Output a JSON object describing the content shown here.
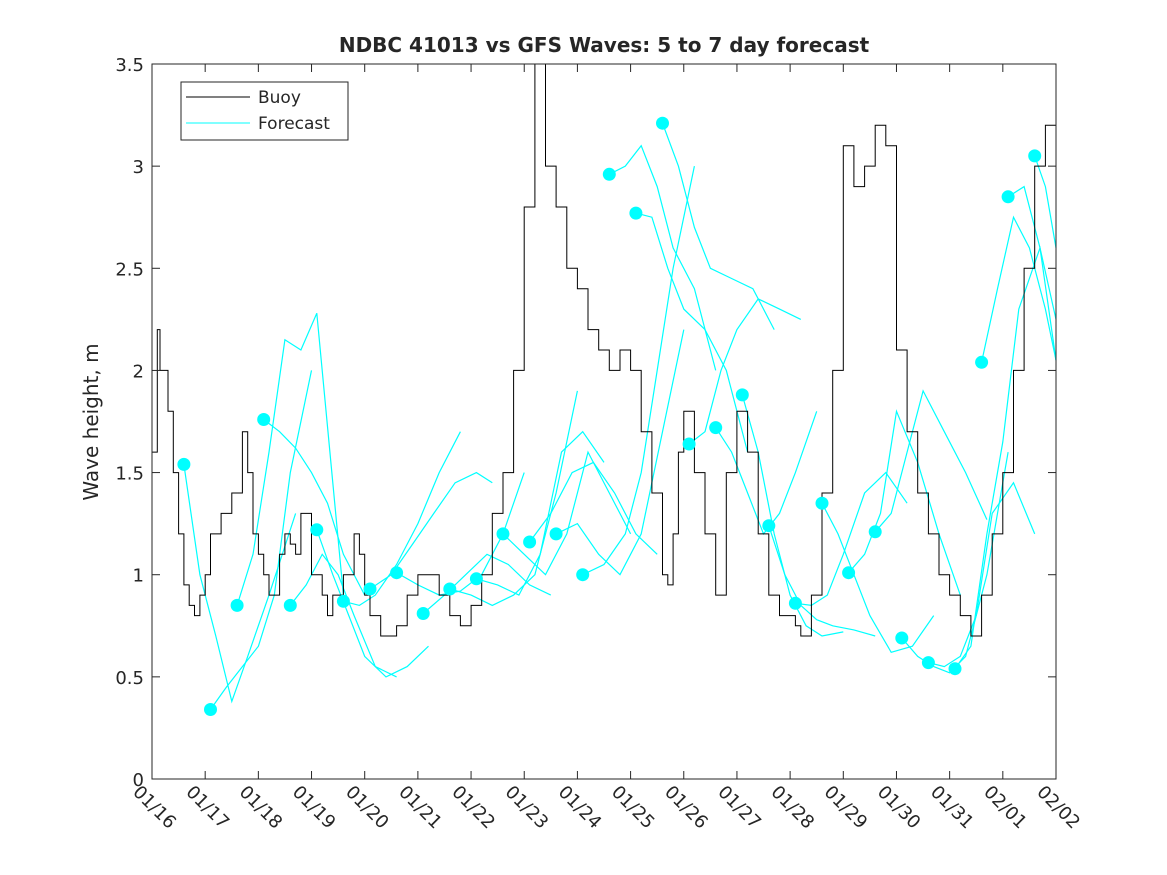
{
  "chart_data": {
    "type": "line",
    "title": "NDBC 41013 vs GFS Waves: 5 to 7 day forecast",
    "xlabel": "",
    "ylabel": "Wave height, m",
    "xlim": [
      0,
      17
    ],
    "ylim": [
      0,
      3.5
    ],
    "x_tick_labels": [
      "01/16",
      "01/17",
      "01/18",
      "01/19",
      "01/20",
      "01/21",
      "01/22",
      "01/23",
      "01/24",
      "01/25",
      "01/26",
      "01/27",
      "01/28",
      "01/29",
      "01/30",
      "01/31",
      "02/01",
      "02/02"
    ],
    "y_ticks": [
      0,
      0.5,
      1,
      1.5,
      2,
      2.5,
      3,
      3.5
    ],
    "y_tick_labels": [
      "0",
      "0.5",
      "1",
      "1.5",
      "2",
      "2.5",
      "3",
      "3.5"
    ],
    "legend": {
      "position": "top-left",
      "entries": [
        {
          "label": "Buoy",
          "color": "#000000"
        },
        {
          "label": "Forecast",
          "color": "#00ffff"
        }
      ]
    },
    "colors": {
      "buoy": "#000000",
      "forecast": "#00ffff"
    },
    "buoy": {
      "name": "Buoy",
      "x": [
        0,
        0.1,
        0.15,
        0.2,
        0.3,
        0.4,
        0.5,
        0.6,
        0.7,
        0.8,
        0.9,
        1.0,
        1.1,
        1.3,
        1.5,
        1.7,
        1.8,
        1.9,
        2.0,
        2.1,
        2.2,
        2.4,
        2.5,
        2.6,
        2.7,
        2.8,
        3.0,
        3.2,
        3.3,
        3.4,
        3.6,
        3.8,
        3.9,
        4.0,
        4.1,
        4.3,
        4.5,
        4.6,
        4.8,
        5.0,
        5.2,
        5.4,
        5.6,
        5.8,
        6.0,
        6.2,
        6.4,
        6.6,
        6.8,
        7.0,
        7.2,
        7.4,
        7.6,
        7.8,
        8.0,
        8.2,
        8.4,
        8.6,
        8.8,
        9.0,
        9.2,
        9.4,
        9.6,
        9.7,
        9.8,
        9.9,
        10.0,
        10.2,
        10.4,
        10.6,
        10.8,
        11.0,
        11.2,
        11.4,
        11.6,
        11.8,
        12.0,
        12.1,
        12.2,
        12.4,
        12.6,
        12.8,
        13.0,
        13.2,
        13.4,
        13.6,
        13.8,
        14.0,
        14.2,
        14.4,
        14.6,
        14.8,
        15.0,
        15.2,
        15.4,
        15.6,
        15.8,
        16.0,
        16.2,
        16.4,
        16.6,
        16.8,
        17.0
      ],
      "y": [
        1.6,
        2.2,
        2.0,
        2.0,
        1.8,
        1.5,
        1.2,
        0.95,
        0.85,
        0.8,
        0.9,
        1.0,
        1.2,
        1.3,
        1.4,
        1.7,
        1.5,
        1.2,
        1.1,
        1.0,
        0.9,
        1.1,
        1.2,
        1.15,
        1.1,
        1.3,
        1.0,
        0.9,
        0.8,
        0.9,
        1.0,
        1.2,
        1.1,
        0.9,
        0.8,
        0.7,
        0.7,
        0.75,
        0.9,
        1.0,
        1.0,
        0.9,
        0.8,
        0.75,
        0.85,
        1.0,
        1.3,
        1.5,
        2.0,
        2.8,
        3.5,
        3.0,
        2.8,
        2.5,
        2.4,
        2.2,
        2.1,
        2.0,
        2.1,
        2.0,
        1.7,
        1.4,
        1.0,
        0.95,
        1.2,
        1.6,
        1.8,
        1.5,
        1.2,
        0.9,
        1.5,
        1.8,
        1.6,
        1.2,
        0.9,
        0.8,
        0.8,
        0.75,
        0.7,
        0.9,
        1.4,
        2.0,
        3.1,
        2.9,
        3.0,
        3.2,
        3.1,
        2.1,
        1.7,
        1.4,
        1.2,
        1.0,
        0.9,
        0.8,
        0.7,
        0.9,
        1.2,
        1.5,
        2.0,
        2.5,
        3.0,
        3.2,
        3.0
      ]
    },
    "forecast_series": [
      {
        "x": [
          0.6,
          0.9,
          1.2,
          1.5,
          1.8,
          2.2,
          2.7
        ],
        "y": [
          1.54,
          1.0,
          0.7,
          0.38,
          0.6,
          0.9,
          1.3
        ]
      },
      {
        "x": [
          1.1,
          1.4,
          1.7,
          2.0,
          2.3,
          2.6,
          3.0
        ],
        "y": [
          0.34,
          0.45,
          0.55,
          0.65,
          0.9,
          1.5,
          2.0
        ]
      },
      {
        "x": [
          1.6,
          1.9,
          2.2,
          2.5,
          2.8,
          3.1,
          3.6
        ],
        "y": [
          0.85,
          1.1,
          1.6,
          2.15,
          2.1,
          2.28,
          0.9
        ]
      },
      {
        "x": [
          2.1,
          2.4,
          2.7,
          3.0,
          3.3,
          3.6,
          4.0
        ],
        "y": [
          1.76,
          1.7,
          1.62,
          1.5,
          1.35,
          1.1,
          0.9
        ]
      },
      {
        "x": [
          2.6,
          2.9,
          3.2,
          3.5,
          3.8,
          4.2,
          4.6
        ],
        "y": [
          0.85,
          0.95,
          1.1,
          1.0,
          0.8,
          0.55,
          0.5
        ]
      },
      {
        "x": [
          3.1,
          3.4,
          3.7,
          4.0,
          4.4,
          4.8,
          5.2
        ],
        "y": [
          1.22,
          1.0,
          0.8,
          0.6,
          0.5,
          0.55,
          0.65
        ]
      },
      {
        "x": [
          3.6,
          3.9,
          4.2,
          4.6,
          5.0,
          5.4,
          5.8
        ],
        "y": [
          0.87,
          0.85,
          0.9,
          1.05,
          1.25,
          1.5,
          1.7
        ]
      },
      {
        "x": [
          4.1,
          4.5,
          4.9,
          5.3,
          5.7,
          6.1,
          6.4
        ],
        "y": [
          0.93,
          1.0,
          1.15,
          1.3,
          1.45,
          1.5,
          1.45
        ]
      },
      {
        "x": [
          4.6,
          5.0,
          5.4,
          5.8,
          6.2,
          6.6,
          7.0
        ],
        "y": [
          1.01,
          0.95,
          0.9,
          0.92,
          1.0,
          1.2,
          1.5
        ]
      },
      {
        "x": [
          5.1,
          5.5,
          5.9,
          6.3,
          6.7,
          7.1,
          7.5
        ],
        "y": [
          0.81,
          0.9,
          1.0,
          1.1,
          1.05,
          0.95,
          0.9
        ]
      },
      {
        "x": [
          5.6,
          6.0,
          6.4,
          6.8,
          7.2,
          7.6,
          8.0
        ],
        "y": [
          0.93,
          0.9,
          0.85,
          0.9,
          1.0,
          1.4,
          1.9
        ]
      },
      {
        "x": [
          6.1,
          6.5,
          6.9,
          7.3,
          7.7,
          8.1,
          8.5
        ],
        "y": [
          0.98,
          0.95,
          0.9,
          1.1,
          1.6,
          1.7,
          1.55
        ]
      },
      {
        "x": [
          6.6,
          7.0,
          7.4,
          7.8,
          8.2,
          8.6,
          9.0
        ],
        "y": [
          1.2,
          1.1,
          1.0,
          1.2,
          1.6,
          1.4,
          1.2
        ]
      },
      {
        "x": [
          7.1,
          7.5,
          7.9,
          8.3,
          8.7,
          9.1,
          9.5
        ],
        "y": [
          1.16,
          1.3,
          1.5,
          1.55,
          1.4,
          1.2,
          1.1
        ]
      },
      {
        "x": [
          7.6,
          8.0,
          8.4,
          8.8,
          9.2,
          9.6,
          10.0
        ],
        "y": [
          1.2,
          1.25,
          1.1,
          1.0,
          1.2,
          1.7,
          2.2
        ]
      },
      {
        "x": [
          8.1,
          8.5,
          8.9,
          9.2,
          9.5,
          9.8,
          10.2
        ],
        "y": [
          1.0,
          1.05,
          1.2,
          1.5,
          2.0,
          2.5,
          3.0
        ]
      },
      {
        "x": [
          8.6,
          8.9,
          9.2,
          9.5,
          9.8,
          10.2,
          10.6
        ],
        "y": [
          2.96,
          3.0,
          3.1,
          2.9,
          2.6,
          2.4,
          2.0
        ]
      },
      {
        "x": [
          9.1,
          9.4,
          9.7,
          10.0,
          10.4,
          10.8,
          11.2
        ],
        "y": [
          2.77,
          2.75,
          2.5,
          2.3,
          2.2,
          2.0,
          1.6
        ]
      },
      {
        "x": [
          9.6,
          9.9,
          10.2,
          10.5,
          10.9,
          11.3,
          11.7
        ],
        "y": [
          3.21,
          3.0,
          2.7,
          2.5,
          2.45,
          2.4,
          2.2
        ]
      },
      {
        "x": [
          10.1,
          10.4,
          10.7,
          11.0,
          11.4,
          11.8,
          12.2
        ],
        "y": [
          1.64,
          1.7,
          2.0,
          2.2,
          2.35,
          2.3,
          2.25
        ]
      },
      {
        "x": [
          10.6,
          10.9,
          11.2,
          11.5,
          11.8,
          12.1,
          12.5
        ],
        "y": [
          1.72,
          1.6,
          1.4,
          1.2,
          1.3,
          1.5,
          1.8
        ]
      },
      {
        "x": [
          11.1,
          11.4,
          11.7,
          12.0,
          12.3,
          12.6,
          13.0
        ],
        "y": [
          1.88,
          1.6,
          1.2,
          0.9,
          0.75,
          0.7,
          0.72
        ]
      },
      {
        "x": [
          11.6,
          11.9,
          12.2,
          12.5,
          12.8,
          13.2,
          13.6
        ],
        "y": [
          1.24,
          1.0,
          0.85,
          0.78,
          0.75,
          0.73,
          0.7
        ]
      },
      {
        "x": [
          12.1,
          12.4,
          12.7,
          13.0,
          13.4,
          13.8,
          14.2
        ],
        "y": [
          0.86,
          0.85,
          0.9,
          1.1,
          1.4,
          1.5,
          1.35
        ]
      },
      {
        "x": [
          12.6,
          12.9,
          13.2,
          13.5,
          13.9,
          14.3,
          14.7
        ],
        "y": [
          1.35,
          1.2,
          1.0,
          0.8,
          0.62,
          0.65,
          0.8
        ]
      },
      {
        "x": [
          13.1,
          13.4,
          13.7,
          14.0,
          14.4,
          14.8,
          15.2
        ],
        "y": [
          1.01,
          1.1,
          1.3,
          1.8,
          1.55,
          1.2,
          0.9
        ]
      },
      {
        "x": [
          13.6,
          13.9,
          14.2,
          14.5,
          14.9,
          15.3,
          15.7
        ],
        "y": [
          1.21,
          1.3,
          1.6,
          1.9,
          1.7,
          1.5,
          1.27
        ]
      },
      {
        "x": [
          14.1,
          14.4,
          14.7,
          15.0,
          15.3,
          15.7,
          16.1
        ],
        "y": [
          0.69,
          0.6,
          0.55,
          0.52,
          0.6,
          1.0,
          1.6
        ]
      },
      {
        "x": [
          14.6,
          14.9,
          15.2,
          15.5,
          15.8,
          16.2,
          16.6
        ],
        "y": [
          0.57,
          0.55,
          0.6,
          0.8,
          1.3,
          1.45,
          1.2
        ]
      },
      {
        "x": [
          15.1,
          15.4,
          15.7,
          16.0,
          16.3,
          16.7,
          17.0
        ],
        "y": [
          0.54,
          0.65,
          1.2,
          1.65,
          2.3,
          2.6,
          2.25
        ]
      },
      {
        "x": [
          15.6,
          15.9,
          16.2,
          16.5,
          16.8,
          17.0
        ],
        "y": [
          2.04,
          2.4,
          2.75,
          2.6,
          2.3,
          2.05
        ]
      },
      {
        "x": [
          16.1,
          16.4,
          16.7,
          17.0
        ],
        "y": [
          2.85,
          2.9,
          2.6,
          2.05
        ]
      },
      {
        "x": [
          16.6,
          16.8,
          17.0
        ],
        "y": [
          3.05,
          2.9,
          2.6
        ]
      }
    ]
  }
}
